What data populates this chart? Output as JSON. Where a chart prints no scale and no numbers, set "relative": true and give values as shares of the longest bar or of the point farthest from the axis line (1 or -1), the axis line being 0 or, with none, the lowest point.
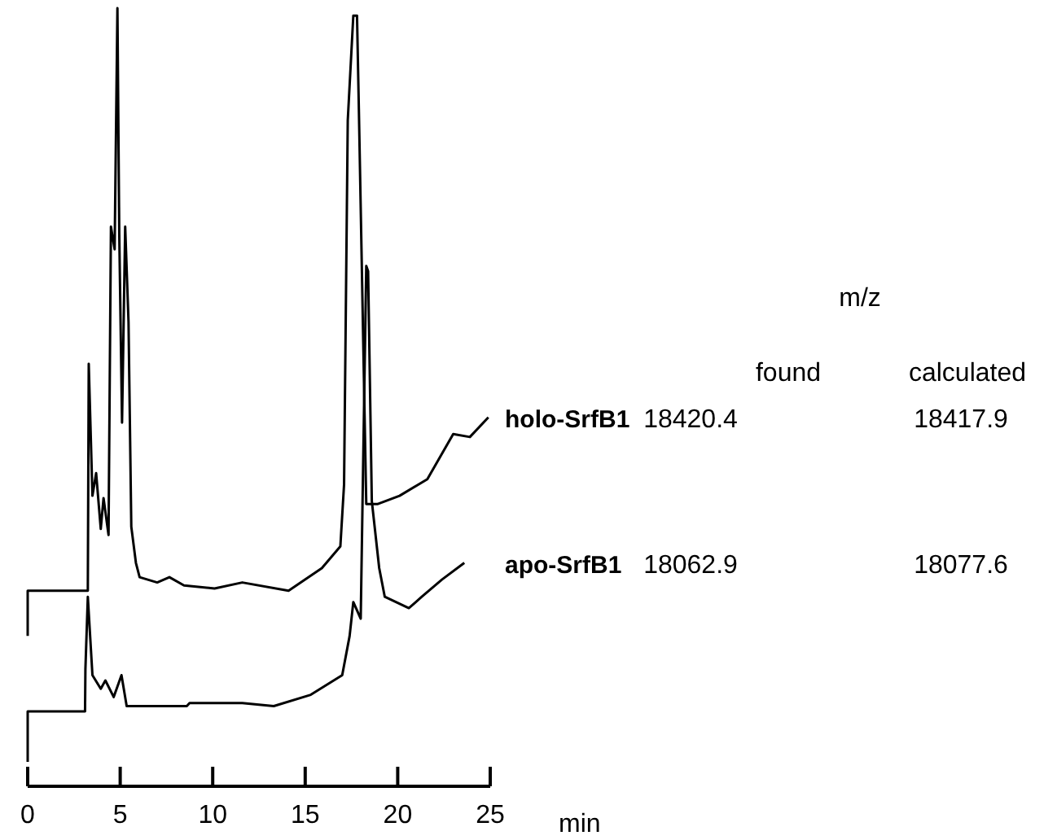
{
  "chart_data": {
    "type": "line",
    "relative": true,
    "xlabel": "min",
    "xlim": [
      0,
      25
    ],
    "xticks": [
      0,
      5,
      10,
      15,
      20,
      25
    ],
    "series": [
      {
        "name": "holo-SrfB1",
        "color": "#000000",
        "x": [
          0,
          0,
          3.25,
          3.3,
          3.5,
          3.7,
          3.95,
          4.1,
          4.37,
          4.5,
          4.7,
          4.85,
          4.95,
          5.1,
          5.27,
          5.45,
          5.6,
          5.85,
          6.05,
          7.0,
          7.66,
          8.45,
          10.1,
          11.6,
          14.1,
          15.9,
          16.9,
          17.1,
          17.3,
          17.6,
          17.8,
          17.9,
          18.3,
          18.9,
          20.1,
          21.6,
          22.3,
          23.0,
          23.9,
          24.9
        ],
        "values": [
          0.167,
          0.227,
          0.227,
          0.528,
          0.353,
          0.383,
          0.309,
          0.35,
          0.301,
          0.71,
          0.68,
          1,
          0.7,
          0.45,
          0.71,
          0.584,
          0.312,
          0.264,
          0.245,
          0.238,
          0.245,
          0.234,
          0.23,
          0.238,
          0.227,
          0.257,
          0.286,
          0.368,
          0.851,
          0.99,
          0.99,
          0.866,
          0.342,
          0.342,
          0.353,
          0.375,
          0.405,
          0.435,
          0.431,
          0.457
        ]
      },
      {
        "name": "apo-SrfB1",
        "color": "#000000",
        "x": [
          0,
          0,
          3.1,
          3.12,
          3.25,
          3.5,
          3.95,
          4.2,
          4.65,
          5.07,
          5.35,
          8.6,
          8.75,
          11.6,
          13.3,
          15.3,
          17.0,
          17.4,
          17.6,
          18.0,
          18.3,
          18.4,
          18.6,
          19.0,
          19.3,
          20.6,
          21.3,
          22.4,
          23.6
        ],
        "values": [
          0,
          0.067,
          0.067,
          0.123,
          0.219,
          0.115,
          0.097,
          0.108,
          0.086,
          0.115,
          0.074,
          0.074,
          0.078,
          0.078,
          0.074,
          0.089,
          0.115,
          0.167,
          0.212,
          0.19,
          0.658,
          0.651,
          0.346,
          0.257,
          0.219,
          0.204,
          0.219,
          0.242,
          0.264
        ]
      }
    ],
    "annotations": [
      "m/z",
      "found",
      "calculated",
      "18420.4",
      "18417.9",
      "18062.9",
      "18077.6"
    ]
  }
}
